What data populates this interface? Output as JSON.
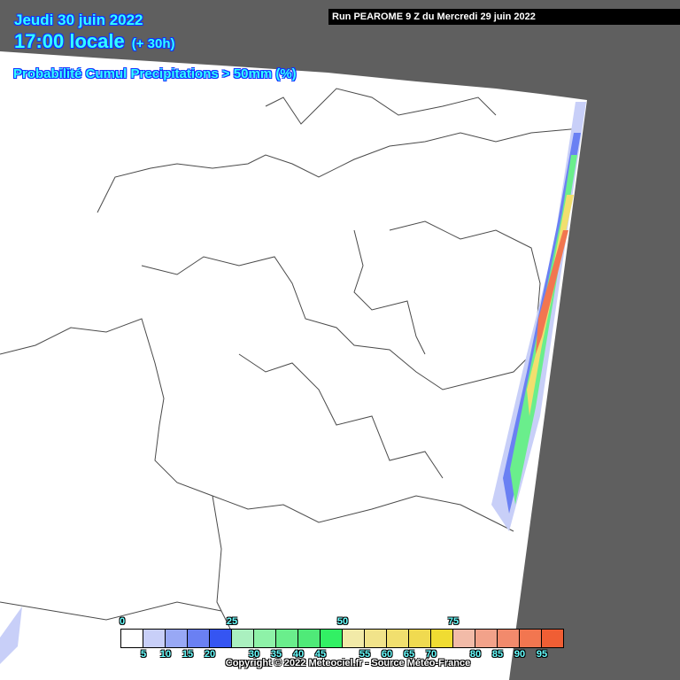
{
  "header": {
    "date": "Jeudi 30 juin 2022",
    "time": "17:00 locale",
    "lead": "(+ 30h)",
    "product": "Probabilité Cumul Precipitations > 50mm (%)",
    "run": "Run PEAROME 9 Z du Mercredi 29 juin 2022"
  },
  "legend": {
    "major_labels": [
      "0",
      "25",
      "50",
      "75"
    ],
    "minor_labels": [
      "5",
      "10",
      "15",
      "20",
      "30",
      "35",
      "40",
      "45",
      "55",
      "60",
      "65",
      "70",
      "80",
      "85",
      "90",
      "95"
    ],
    "colors": [
      "#ffffff",
      "#c8cff8",
      "#98a8f5",
      "#6a80f3",
      "#3555f2",
      "#aaf0bf",
      "#8ef2a8",
      "#6aee8c",
      "#4fea78",
      "#32f064",
      "#f2eaa8",
      "#f1e38a",
      "#f1df6e",
      "#f0da50",
      "#f0dc32",
      "#f2bba8",
      "#f2a28a",
      "#f28a6c",
      "#f27650",
      "#f05e34"
    ]
  },
  "map": {
    "outside_domain_color": "#5f5f5f",
    "land_color": "#ffffff",
    "border_color": "#4a4a4a"
  },
  "footer": {
    "copyright": "Copyright © 2022 Meteociel.fr - Source Météo-France"
  }
}
